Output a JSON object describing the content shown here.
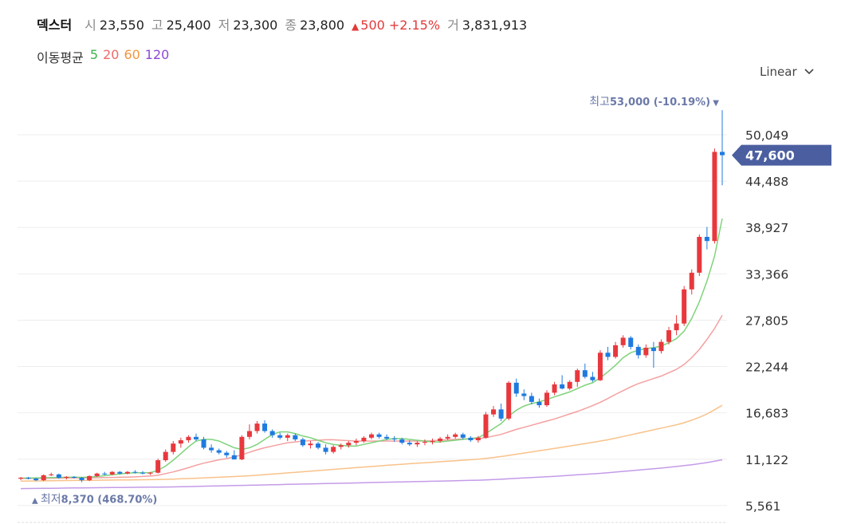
{
  "header": {
    "stock_name": "덱스터",
    "open_label": "시",
    "open_value": "23,550",
    "high_label": "고",
    "high_value": "25,400",
    "low_label": "저",
    "low_value": "23,300",
    "close_label": "종",
    "close_value": "23,800",
    "change_icon": "triangle-up-icon",
    "change_value": "500",
    "change_percent": "+2.15%",
    "volume_label": "거",
    "volume_value": "3,831,913"
  },
  "moving_average": {
    "label": "이동평균",
    "periods": [
      {
        "label": "5",
        "color": "#3cb44b"
      },
      {
        "label": "20",
        "color": "#f06a6a"
      },
      {
        "label": "60",
        "color": "#f3953d"
      },
      {
        "label": "120",
        "color": "#8c4ad6"
      }
    ]
  },
  "scale_selector": {
    "label": "Linear",
    "icon": "chevron-down-icon"
  },
  "colors": {
    "up": "#e8383d",
    "down": "#1f7ae0",
    "ma5": "#7fd37b",
    "ma20": "#f4a0a0",
    "ma60": "#f8c28a",
    "ma120": "#c49be8",
    "price_tag": "#4b5fa0",
    "marker_text": "#6b79a8"
  },
  "chart_data": {
    "type": "candlestick",
    "y_axis": {
      "ticks": [
        "50,049",
        "44,488",
        "38,927",
        "33,366",
        "27,805",
        "22,244",
        "16,683",
        "11,122",
        "5,561"
      ],
      "tick_values": [
        50049,
        44488,
        38927,
        33366,
        27805,
        22244,
        16683,
        11122,
        5561
      ],
      "position": "right",
      "grid": true
    },
    "current_price": {
      "label": "47,600",
      "value": 47600
    },
    "high_marker": {
      "label": "최고",
      "value": "53,000",
      "change": "(-10.19%)",
      "icon": "triangle-down-icon"
    },
    "low_marker": {
      "label": "최저",
      "value": "8,370",
      "change": "(468.70%)",
      "icon": "triangle-up-icon"
    },
    "candles": [
      [
        8800,
        9000,
        8600,
        8900
      ],
      [
        8900,
        9000,
        8700,
        8800
      ],
      [
        8800,
        8900,
        8500,
        8600
      ],
      [
        8600,
        9300,
        8500,
        9200
      ],
      [
        9200,
        9500,
        9100,
        9300
      ],
      [
        9300,
        9400,
        8800,
        8900
      ],
      [
        8900,
        9100,
        8700,
        9000
      ],
      [
        9000,
        9100,
        8800,
        8900
      ],
      [
        8900,
        9000,
        8370,
        8600
      ],
      [
        8600,
        9200,
        8500,
        9100
      ],
      [
        9100,
        9500,
        9000,
        9400
      ],
      [
        9400,
        9600,
        9200,
        9300
      ],
      [
        9300,
        9700,
        9200,
        9600
      ],
      [
        9600,
        9700,
        9300,
        9400
      ],
      [
        9400,
        9700,
        9300,
        9600
      ],
      [
        9600,
        9800,
        9400,
        9500
      ],
      [
        9500,
        9700,
        9300,
        9400
      ],
      [
        9400,
        9600,
        9200,
        9500
      ],
      [
        9500,
        11200,
        9400,
        11000
      ],
      [
        11000,
        12300,
        10800,
        12000
      ],
      [
        12000,
        13300,
        11700,
        13000
      ],
      [
        13000,
        13700,
        12500,
        13400
      ],
      [
        13400,
        14000,
        13100,
        13800
      ],
      [
        13800,
        14200,
        13300,
        13500
      ],
      [
        13500,
        13800,
        12300,
        12500
      ],
      [
        12500,
        12900,
        11900,
        12200
      ],
      [
        12200,
        12400,
        11700,
        11900
      ],
      [
        11900,
        12100,
        11300,
        11600
      ],
      [
        11600,
        12200,
        11200,
        11100
      ],
      [
        11100,
        14000,
        11000,
        13800
      ],
      [
        13800,
        15300,
        13500,
        14500
      ],
      [
        14500,
        15700,
        14200,
        15400
      ],
      [
        15400,
        15800,
        14300,
        14500
      ],
      [
        14500,
        14700,
        13700,
        14000
      ],
      [
        14000,
        14300,
        13500,
        13700
      ],
      [
        13700,
        14200,
        13300,
        14000
      ],
      [
        14000,
        14200,
        13300,
        13500
      ],
      [
        13500,
        13700,
        12600,
        12800
      ],
      [
        12800,
        13300,
        12400,
        13000
      ],
      [
        13000,
        13200,
        12300,
        12500
      ],
      [
        12500,
        12900,
        11700,
        12000
      ],
      [
        12000,
        12800,
        11800,
        12600
      ],
      [
        12600,
        13000,
        12300,
        12800
      ],
      [
        12800,
        13300,
        12500,
        13100
      ],
      [
        13100,
        13600,
        12800,
        13300
      ],
      [
        13300,
        13900,
        13100,
        13700
      ],
      [
        13700,
        14300,
        13500,
        14100
      ],
      [
        14100,
        14300,
        13600,
        13800
      ],
      [
        13800,
        14100,
        13400,
        13600
      ],
      [
        13600,
        13900,
        13200,
        13500
      ],
      [
        13500,
        13700,
        12900,
        13100
      ],
      [
        13100,
        13400,
        12700,
        12900
      ],
      [
        12900,
        13300,
        12600,
        13100
      ],
      [
        13100,
        13500,
        12800,
        13200
      ],
      [
        13200,
        13600,
        12900,
        13300
      ],
      [
        13300,
        13800,
        13100,
        13600
      ],
      [
        13600,
        14100,
        13400,
        13800
      ],
      [
        13800,
        14300,
        13600,
        14100
      ],
      [
        14100,
        14300,
        13500,
        13700
      ],
      [
        13700,
        13900,
        13200,
        13400
      ],
      [
        13400,
        13900,
        13100,
        13700
      ],
      [
        13700,
        16800,
        13600,
        16500
      ],
      [
        16500,
        17500,
        16200,
        17100
      ],
      [
        17100,
        17800,
        15700,
        16000
      ],
      [
        16000,
        20500,
        15800,
        20300
      ],
      [
        20300,
        20800,
        18600,
        19000
      ],
      [
        19000,
        19500,
        18200,
        18700
      ],
      [
        18700,
        19100,
        17700,
        18000
      ],
      [
        18000,
        18400,
        17300,
        17600
      ],
      [
        17600,
        19400,
        17400,
        19100
      ],
      [
        19100,
        20400,
        18800,
        20100
      ],
      [
        20100,
        21200,
        19500,
        19600
      ],
      [
        19600,
        20600,
        19400,
        20400
      ],
      [
        20400,
        22000,
        19800,
        21800
      ],
      [
        21800,
        22600,
        20800,
        21000
      ],
      [
        21000,
        21600,
        20400,
        20600
      ],
      [
        20600,
        24200,
        20500,
        23900
      ],
      [
        23900,
        24600,
        23000,
        23400
      ],
      [
        23400,
        25200,
        23200,
        24800
      ],
      [
        24800,
        26000,
        24500,
        25700
      ],
      [
        25700,
        25900,
        24300,
        24600
      ],
      [
        24600,
        24900,
        23200,
        23600
      ],
      [
        23600,
        24900,
        23300,
        24500
      ],
      [
        24500,
        25200,
        22100,
        24100
      ],
      [
        24100,
        25500,
        23800,
        25200
      ],
      [
        25200,
        27000,
        24900,
        26600
      ],
      [
        26600,
        28400,
        26000,
        27400
      ],
      [
        27400,
        31900,
        27100,
        31500
      ],
      [
        31500,
        33900,
        30900,
        33500
      ],
      [
        33500,
        38100,
        33100,
        37800
      ],
      [
        37800,
        39000,
        36300,
        37300
      ],
      [
        37300,
        48400,
        37000,
        48000
      ],
      [
        48000,
        53000,
        44000,
        47600
      ]
    ],
    "ma5": [
      8850,
      8860,
      8870,
      8900,
      8920,
      8940,
      8960,
      8980,
      8950,
      8970,
      9050,
      9150,
      9250,
      9350,
      9450,
      9500,
      9500,
      9500,
      9800,
      10300,
      11000,
      11800,
      12600,
      13300,
      13500,
      13500,
      13300,
      12900,
      12500,
      12300,
      12500,
      12900,
      13500,
      14100,
      14400,
      14400,
      14200,
      13900,
      13700,
      13400,
      13100,
      12900,
      12800,
      12700,
      12700,
      12900,
      13100,
      13300,
      13500,
      13600,
      13600,
      13500,
      13400,
      13300,
      13200,
      13200,
      13300,
      13400,
      13500,
      13600,
      13700,
      14200,
      14800,
      15400,
      16300,
      17000,
      17500,
      17800,
      18000,
      18300,
      18600,
      18900,
      19200,
      19600,
      20000,
      20300,
      20900,
      21600,
      22400,
      23300,
      23900,
      24200,
      24400,
      24500,
      24700,
      25100,
      25600,
      26500,
      28000,
      30000,
      32500,
      35500,
      40000
    ],
    "ma20": [
      8800,
      8810,
      8820,
      8830,
      8840,
      8850,
      8860,
      8870,
      8880,
      8890,
      8900,
      8920,
      8940,
      8960,
      8980,
      9000,
      9050,
      9100,
      9200,
      9400,
      9600,
      9850,
      10100,
      10400,
      10650,
      10850,
      11050,
      11200,
      11400,
      11650,
      11950,
      12250,
      12500,
      12700,
      12900,
      13100,
      13200,
      13300,
      13350,
      13400,
      13450,
      13450,
      13400,
      13350,
      13300,
      13300,
      13300,
      13300,
      13300,
      13300,
      13300,
      13300,
      13300,
      13300,
      13350,
      13400,
      13450,
      13500,
      13550,
      13550,
      13600,
      13700,
      13900,
      14100,
      14400,
      14700,
      14950,
      15200,
      15450,
      15700,
      15950,
      16250,
      16550,
      16850,
      17200,
      17550,
      17950,
      18400,
      18900,
      19350,
      19800,
      20200,
      20500,
      20800,
      21100,
      21500,
      21900,
      22500,
      23300,
      24300,
      25500,
      26800,
      28400
    ],
    "ma60": [
      8500,
      8510,
      8520,
      8530,
      8540,
      8550,
      8560,
      8570,
      8580,
      8590,
      8600,
      8610,
      8620,
      8630,
      8640,
      8650,
      8660,
      8670,
      8690,
      8710,
      8740,
      8770,
      8800,
      8840,
      8880,
      8920,
      8960,
      9000,
      9040,
      9090,
      9140,
      9200,
      9270,
      9340,
      9410,
      9480,
      9550,
      9620,
      9690,
      9760,
      9830,
      9900,
      9970,
      10040,
      10110,
      10180,
      10250,
      10320,
      10390,
      10460,
      10520,
      10580,
      10640,
      10700,
      10760,
      10820,
      10880,
      10940,
      11000,
      11060,
      11120,
      11220,
      11330,
      11440,
      11580,
      11720,
      11860,
      12000,
      12140,
      12280,
      12420,
      12560,
      12700,
      12850,
      13000,
      13150,
      13300,
      13450,
      13650,
      13850,
      14050,
      14250,
      14450,
      14650,
      14850,
      15050,
      15250,
      15500,
      15800,
      16150,
      16550,
      17050,
      17600
    ],
    "ma120": [
      7600,
      7610,
      7620,
      7630,
      7640,
      7650,
      7660,
      7670,
      7680,
      7690,
      7700,
      7710,
      7720,
      7730,
      7740,
      7750,
      7760,
      7770,
      7780,
      7790,
      7800,
      7820,
      7840,
      7860,
      7880,
      7900,
      7920,
      7940,
      7960,
      7980,
      8000,
      8020,
      8040,
      8060,
      8080,
      8100,
      8120,
      8140,
      8160,
      8180,
      8200,
      8220,
      8240,
      8260,
      8280,
      8300,
      8320,
      8340,
      8360,
      8380,
      8400,
      8420,
      8440,
      8460,
      8480,
      8500,
      8520,
      8540,
      8560,
      8580,
      8600,
      8640,
      8680,
      8720,
      8770,
      8820,
      8870,
      8920,
      8970,
      9020,
      9070,
      9130,
      9190,
      9250,
      9310,
      9370,
      9430,
      9500,
      9580,
      9660,
      9740,
      9820,
      9900,
      9980,
      10060,
      10150,
      10250,
      10350,
      10460,
      10580,
      10720,
      10880,
      11050
    ]
  }
}
